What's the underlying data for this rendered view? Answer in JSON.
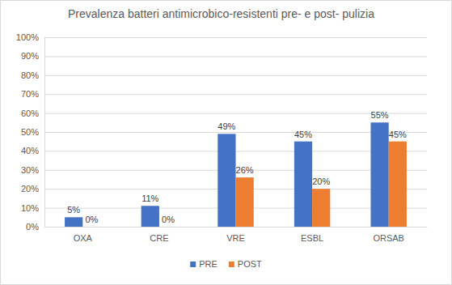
{
  "chart_data": {
    "type": "bar",
    "title": "Prevalenza batteri antimicrobico-resistenti pre- e post- pulizia",
    "categories": [
      "OXA",
      "CRE",
      "VRE",
      "ESBL",
      "ORSAB"
    ],
    "series": [
      {
        "name": "PRE",
        "color": "#4472c4",
        "values": [
          5,
          11,
          49,
          45,
          55
        ],
        "value_labels": [
          "5%",
          "11%",
          "49%",
          "45%",
          "55%"
        ]
      },
      {
        "name": "POST",
        "color": "#ed7d31",
        "values": [
          0,
          0,
          26,
          20,
          45
        ],
        "value_labels": [
          "0%",
          "0%",
          "26%",
          "20%",
          "45%"
        ]
      }
    ],
    "ylim": [
      0,
      100
    ],
    "yticks": [
      {
        "value": 0,
        "label": "0%"
      },
      {
        "value": 10,
        "label": "10%"
      },
      {
        "value": 20,
        "label": "20%"
      },
      {
        "value": 30,
        "label": "30%"
      },
      {
        "value": 40,
        "label": "40%"
      },
      {
        "value": 50,
        "label": "50%"
      },
      {
        "value": 60,
        "label": "60%"
      },
      {
        "value": 70,
        "label": "70%"
      },
      {
        "value": 80,
        "label": "80%"
      },
      {
        "value": 90,
        "label": "90%"
      },
      {
        "value": 100,
        "label": "100%"
      }
    ],
    "grid": true,
    "data_labels": true,
    "legend": "bottom"
  }
}
